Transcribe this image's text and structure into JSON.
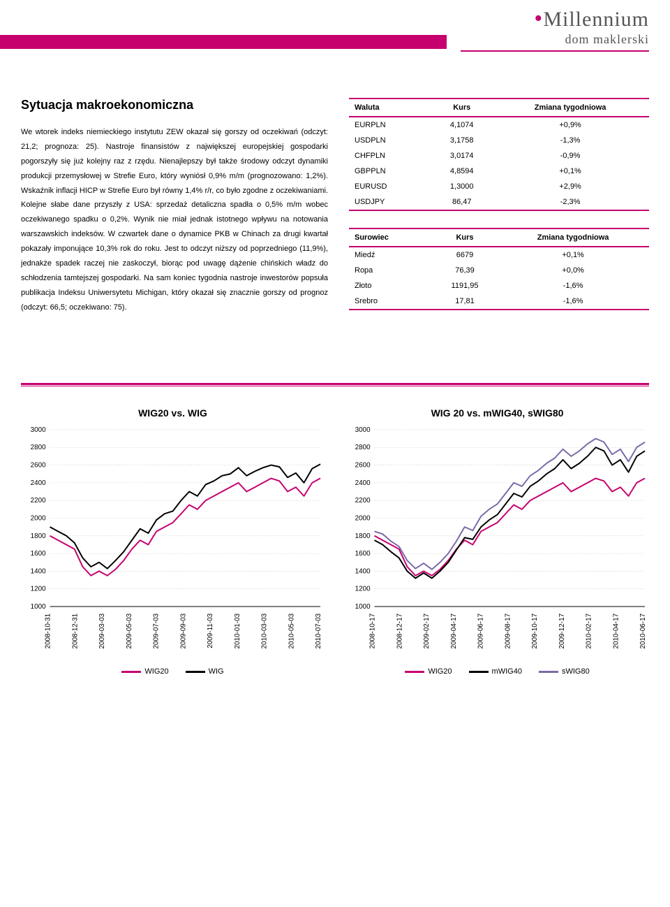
{
  "logo": {
    "brand": "Millennium",
    "sub": "dom maklerski"
  },
  "section": {
    "title": "Sytuacja makroekonomiczna",
    "body": "We wtorek indeks niemieckiego instytutu ZEW okazał się gorszy od oczekiwań (odczyt: 21,2; prognoza: 25). Nastroje finansistów z największej europejskiej gospodarki pogorszyły się już kolejny raz z rzędu. Nienajlepszy był także środowy odczyt dynamiki produkcji przemysłowej w Strefie Euro, który wyniósł 0,9% m/m (prognozowano: 1,2%). Wskaźnik inflacji HICP w Strefie Euro był równy 1,4% r/r, co było zgodne z oczekiwaniami. Kolejne słabe dane przyszły z USA: sprzedaż detaliczna spadła o 0,5% m/m wobec oczekiwanego spadku o 0,2%. Wynik nie miał jednak istotnego wpływu na notowania warszawskich indeksów. W czwartek dane o dynamice PKB w Chinach za drugi kwartał pokazały imponujące 10,3% rok do roku. Jest to odczyt niższy od poprzedniego (11,9%), jednakże spadek raczej nie zaskoczył, biorąc pod uwagę dążenie chińskich władz do schłodzenia tamtejszej gospodarki. Na sam koniec tygodnia nastroje inwestorów popsuła publikacja Indeksu Uniwersytetu Michigan, który okazał się znacznie gorszy od prognoz (odczyt: 66,5; oczekiwano: 75)."
  },
  "currency_table": {
    "headers": [
      "Waluta",
      "Kurs",
      "Zmiana tygodniowa"
    ],
    "rows": [
      [
        "EURPLN",
        "4,1074",
        "+0,9%"
      ],
      [
        "USDPLN",
        "3,1758",
        "-1,3%"
      ],
      [
        "CHFPLN",
        "3,0174",
        "-0,9%"
      ],
      [
        "GBPPLN",
        "4,8594",
        "+0,1%"
      ],
      [
        "EURUSD",
        "1,3000",
        "+2,9%"
      ],
      [
        "USDJPY",
        "86,47",
        "-2,3%"
      ]
    ]
  },
  "commodity_table": {
    "headers": [
      "Surowiec",
      "Kurs",
      "Zmiana tygodniowa"
    ],
    "rows": [
      [
        "Miedź",
        "6679",
        "+0,1%"
      ],
      [
        "Ropa",
        "76,39",
        "+0,0%"
      ],
      [
        "Złoto",
        "1191,95",
        "-1,6%"
      ],
      [
        "Srebro",
        "17,81",
        "-1,6%"
      ]
    ]
  },
  "charts": {
    "left": {
      "title": "WIG20 vs. WIG",
      "type": "line",
      "ylim": [
        1000,
        3000
      ],
      "ytick_step": 200,
      "yticks": [
        "3000",
        "2800",
        "2600",
        "2400",
        "2200",
        "2000",
        "1800",
        "1600",
        "1400",
        "1200",
        "1000"
      ],
      "xlabels": [
        "2008-10-31",
        "2008-12-31",
        "2009-03-03",
        "2009-05-03",
        "2009-07-03",
        "2009-09-03",
        "2009-11-03",
        "2010-01-03",
        "2010-03-03",
        "2010-05-03",
        "2010-07-03"
      ],
      "grid_color": "#bfbfbf",
      "background_color": "#ffffff",
      "series": [
        {
          "name": "WIG20",
          "color": "#c6006f",
          "width": 2,
          "values": [
            1800,
            1750,
            1700,
            1650,
            1450,
            1350,
            1400,
            1350,
            1420,
            1520,
            1650,
            1750,
            1700,
            1850,
            1900,
            1950,
            2050,
            2150,
            2100,
            2200,
            2250,
            2300,
            2350,
            2400,
            2300,
            2350,
            2400,
            2450,
            2420,
            2300,
            2350,
            2250,
            2400,
            2450
          ]
        },
        {
          "name": "WIG",
          "color": "#000000",
          "width": 2,
          "values": [
            1900,
            1850,
            1800,
            1720,
            1550,
            1450,
            1500,
            1430,
            1520,
            1620,
            1750,
            1880,
            1830,
            1980,
            2050,
            2080,
            2200,
            2300,
            2250,
            2380,
            2420,
            2480,
            2500,
            2570,
            2480,
            2530,
            2570,
            2600,
            2580,
            2460,
            2510,
            2400,
            2560,
            2610
          ]
        }
      ],
      "legend": [
        {
          "label": "WIG20",
          "color": "#c6006f"
        },
        {
          "label": "WIG",
          "color": "#000000"
        }
      ]
    },
    "right": {
      "title": "WIG 20 vs. mWIG40, sWIG80",
      "type": "line",
      "ylim": [
        1000,
        3000
      ],
      "ytick_step": 200,
      "yticks": [
        "3000",
        "2800",
        "2600",
        "2400",
        "2200",
        "2000",
        "1800",
        "1600",
        "1400",
        "1200",
        "1000"
      ],
      "xlabels": [
        "2008-10-17",
        "2008-12-17",
        "2009-02-17",
        "2009-04-17",
        "2009-06-17",
        "2009-08-17",
        "2009-10-17",
        "2009-12-17",
        "2010-02-17",
        "2010-04-17",
        "2010-06-17"
      ],
      "grid_color": "#bfbfbf",
      "background_color": "#ffffff",
      "series": [
        {
          "name": "WIG20",
          "color": "#c6006f",
          "width": 2,
          "values": [
            1800,
            1750,
            1700,
            1650,
            1450,
            1350,
            1400,
            1350,
            1420,
            1520,
            1650,
            1750,
            1700,
            1850,
            1900,
            1950,
            2050,
            2150,
            2100,
            2200,
            2250,
            2300,
            2350,
            2400,
            2300,
            2350,
            2400,
            2450,
            2420,
            2300,
            2350,
            2250,
            2400,
            2450
          ]
        },
        {
          "name": "mWIG40",
          "color": "#000000",
          "width": 2,
          "values": [
            1750,
            1700,
            1620,
            1550,
            1400,
            1320,
            1380,
            1320,
            1400,
            1500,
            1640,
            1780,
            1760,
            1900,
            1980,
            2040,
            2160,
            2280,
            2240,
            2360,
            2420,
            2500,
            2560,
            2660,
            2560,
            2620,
            2700,
            2800,
            2760,
            2600,
            2660,
            2520,
            2700,
            2760
          ]
        },
        {
          "name": "sWIG80",
          "color": "#7b6aa8",
          "width": 2,
          "values": [
            1850,
            1820,
            1740,
            1680,
            1520,
            1430,
            1490,
            1420,
            1500,
            1600,
            1740,
            1900,
            1860,
            2020,
            2100,
            2160,
            2280,
            2400,
            2360,
            2480,
            2540,
            2620,
            2680,
            2780,
            2700,
            2760,
            2840,
            2900,
            2860,
            2720,
            2780,
            2640,
            2800,
            2860
          ]
        }
      ],
      "legend": [
        {
          "label": "WIG20",
          "color": "#c6006f"
        },
        {
          "label": "mWIG40",
          "color": "#000000"
        },
        {
          "label": "sWIG80",
          "color": "#7b6aa8"
        }
      ]
    }
  }
}
